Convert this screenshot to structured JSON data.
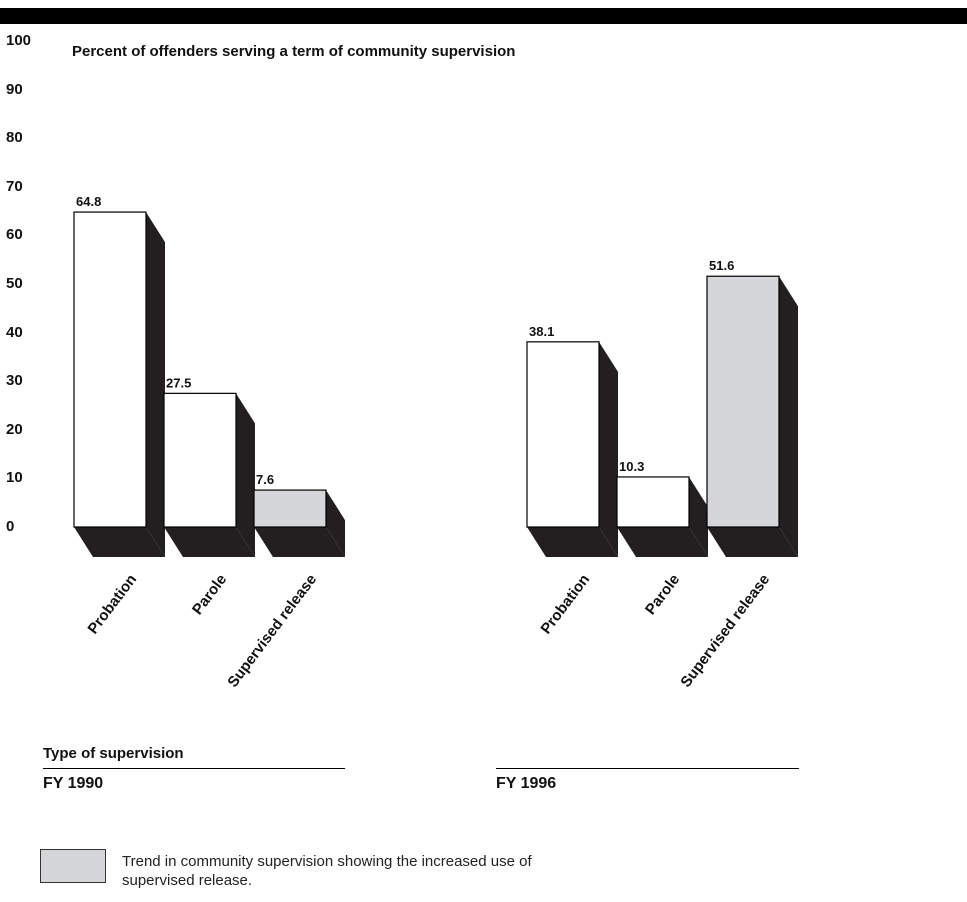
{
  "chart_data": {
    "type": "bar",
    "title": "Percent of offenders serving a term of community supervision",
    "yaxis": {
      "ticks": [
        "100",
        "90",
        "80",
        "70",
        "60",
        "50",
        "40",
        "30",
        "20",
        "10",
        "0"
      ],
      "ylim": [
        0,
        100
      ]
    },
    "xlabel": "Type of supervision",
    "categories": [
      "Probation",
      "Parole",
      "Supervised release"
    ],
    "groups": [
      {
        "name": "FY 1990",
        "values": [
          64.8,
          27.5,
          7.6
        ],
        "labels": [
          "64.8",
          "27.5",
          "7.6"
        ]
      },
      {
        "name": "FY 1996",
        "values": [
          38.1,
          10.3,
          51.6
        ],
        "labels": [
          "38.1",
          "10.3",
          "51.6"
        ]
      }
    ],
    "highlight_category": "Supervised release",
    "colors": {
      "bar": "#ffffff",
      "highlight": "#d4d6d9",
      "shadow": "#231f20",
      "outline": "#000000"
    },
    "legend": {
      "text": "Trend in community supervision showing the increased use of supervised release.",
      "color": "#d4d6d9"
    }
  }
}
